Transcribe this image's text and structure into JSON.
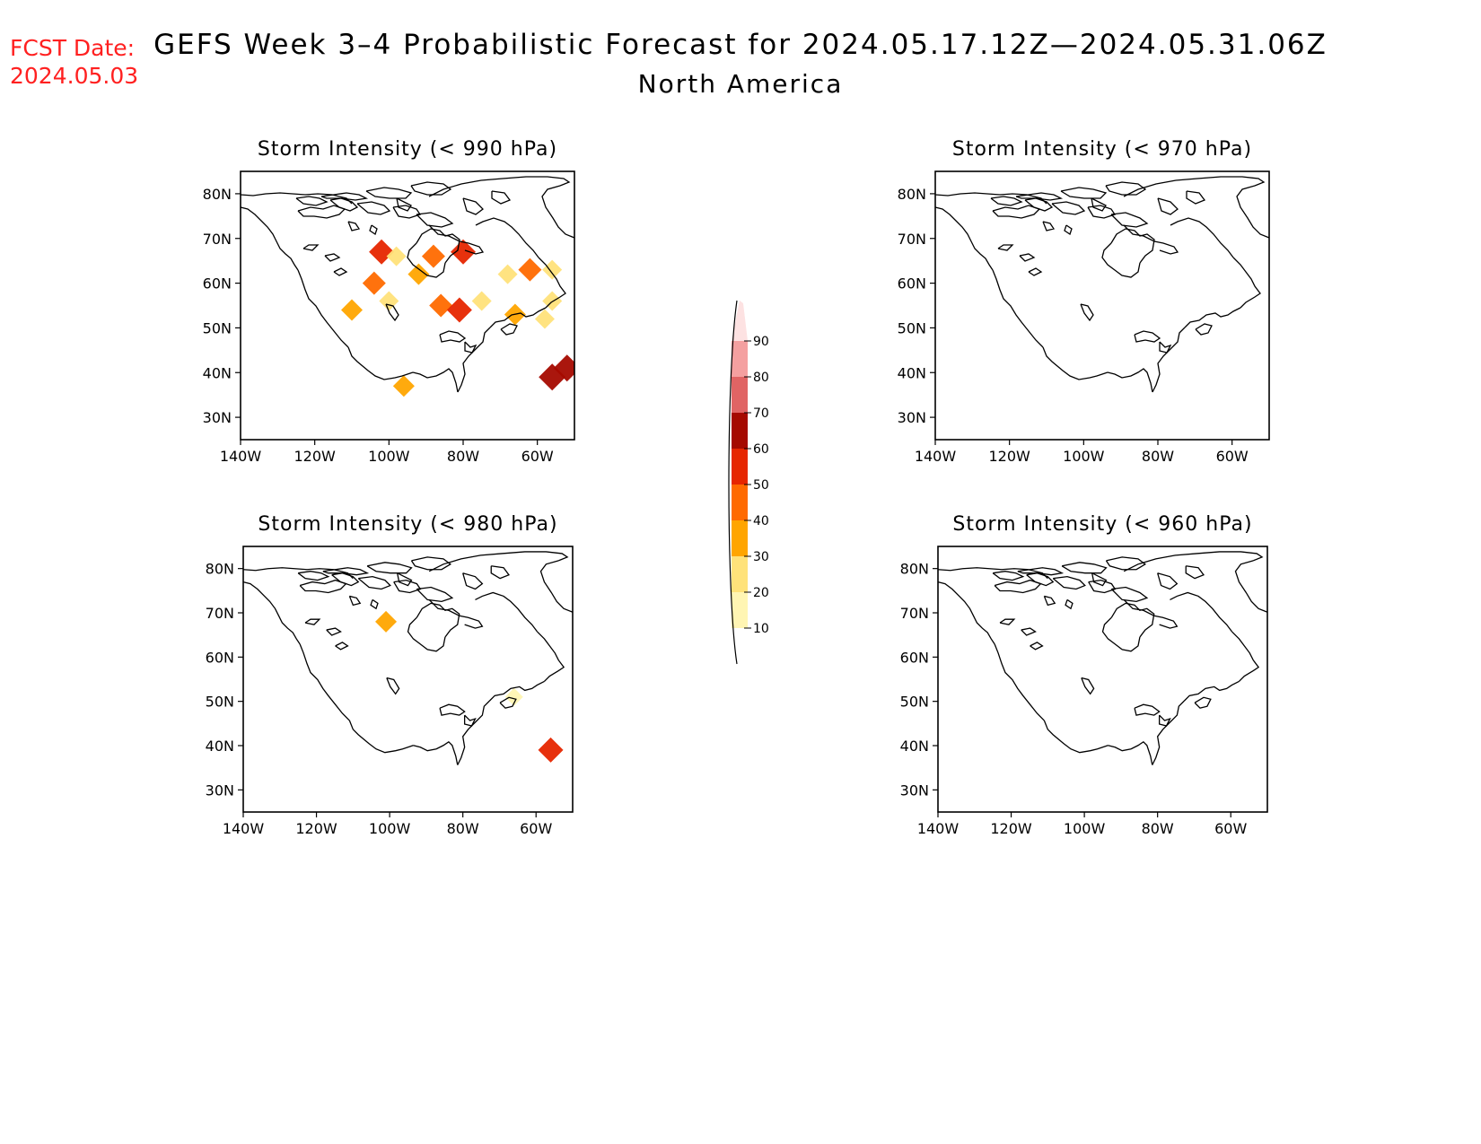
{
  "header": {
    "fcst_label": "FCST Date:",
    "fcst_date": "2024.05.03",
    "title": "GEFS Week 3–4 Probabilistic Forecast for 2024.05.17.12Z—2024.05.31.06Z",
    "subtitle": "North America"
  },
  "map": {
    "lon_ticks": [
      "140W",
      "120W",
      "100W",
      "80W",
      "60W"
    ],
    "lat_ticks": [
      "80N",
      "70N",
      "60N",
      "50N",
      "40N",
      "30N"
    ]
  },
  "panels": [
    {
      "id": "p990",
      "title": "Storm Intensity (< 990 hPa)",
      "blobs": [
        {
          "lon": -102,
          "lat": 67,
          "level": 50
        },
        {
          "lon": -98,
          "lat": 66,
          "level": 20
        },
        {
          "lon": -104,
          "lat": 60,
          "level": 40
        },
        {
          "lon": -100,
          "lat": 56,
          "level": 20
        },
        {
          "lon": -110,
          "lat": 54,
          "level": 30
        },
        {
          "lon": -92,
          "lat": 62,
          "level": 30
        },
        {
          "lon": -88,
          "lat": 66,
          "level": 40
        },
        {
          "lon": -80,
          "lat": 67,
          "level": 50
        },
        {
          "lon": -86,
          "lat": 55,
          "level": 40
        },
        {
          "lon": -81,
          "lat": 54,
          "level": 50
        },
        {
          "lon": -75,
          "lat": 56,
          "level": 20
        },
        {
          "lon": -68,
          "lat": 62,
          "level": 20
        },
        {
          "lon": -62,
          "lat": 63,
          "level": 40
        },
        {
          "lon": -56,
          "lat": 63,
          "level": 20
        },
        {
          "lon": -56,
          "lat": 56,
          "level": 20
        },
        {
          "lon": -58,
          "lat": 52,
          "level": 20
        },
        {
          "lon": -66,
          "lat": 53,
          "level": 30
        },
        {
          "lon": -96,
          "lat": 37,
          "level": 30
        },
        {
          "lon": -56,
          "lat": 39,
          "level": 60
        },
        {
          "lon": -52,
          "lat": 41,
          "level": 60
        }
      ]
    },
    {
      "id": "p970",
      "title": "Storm Intensity (< 970 hPa)",
      "blobs": []
    },
    {
      "id": "p980",
      "title": "Storm Intensity (< 980 hPa)",
      "blobs": [
        {
          "lon": -101,
          "lat": 68,
          "level": 30
        },
        {
          "lon": -66,
          "lat": 51,
          "level": 10
        },
        {
          "lon": -56,
          "lat": 39,
          "level": 50
        }
      ]
    },
    {
      "id": "p960",
      "title": "Storm Intensity (< 960 hPa)",
      "blobs": []
    }
  ],
  "colorbar": {
    "labels": [
      "10",
      "20",
      "30",
      "40",
      "50",
      "60",
      "70",
      "80",
      "90"
    ],
    "colors": [
      "#fff5b3",
      "#ffe27a",
      "#ffa500",
      "#ff6a00",
      "#e62600",
      "#a50a00",
      "#e06464",
      "#f4a0a0",
      "#fde2e2"
    ]
  }
}
